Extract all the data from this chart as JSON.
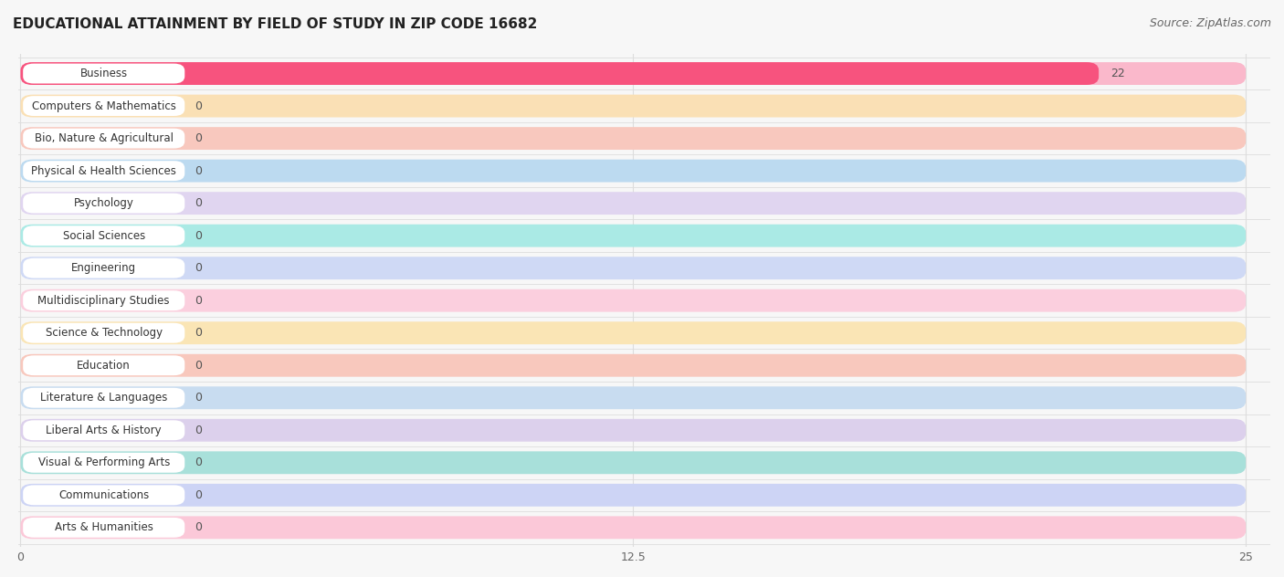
{
  "title": "EDUCATIONAL ATTAINMENT BY FIELD OF STUDY IN ZIP CODE 16682",
  "source": "Source: ZipAtlas.com",
  "categories": [
    "Business",
    "Computers & Mathematics",
    "Bio, Nature & Agricultural",
    "Physical & Health Sciences",
    "Psychology",
    "Social Sciences",
    "Engineering",
    "Multidisciplinary Studies",
    "Science & Technology",
    "Education",
    "Literature & Languages",
    "Liberal Arts & History",
    "Visual & Performing Arts",
    "Communications",
    "Arts & Humanities"
  ],
  "values": [
    22,
    0,
    0,
    0,
    0,
    0,
    0,
    0,
    0,
    0,
    0,
    0,
    0,
    0,
    0
  ],
  "bar_colors": [
    "#F7537E",
    "#F5C07A",
    "#F0967F",
    "#7FB5DC",
    "#C4AFDC",
    "#6ECFC8",
    "#9AAEE0",
    "#F79BB8",
    "#F5C57A",
    "#F09080",
    "#90B8DC",
    "#B89CCC",
    "#60C4BC",
    "#9AACD8",
    "#F79BB0"
  ],
  "bar_bg_colors": [
    "#FAB8CB",
    "#FAE0B5",
    "#F8C8BE",
    "#BCDAF0",
    "#E0D5F0",
    "#AAEAE5",
    "#CFD9F5",
    "#FBCFDE",
    "#FAE5B5",
    "#F8C8BD",
    "#C8DCF0",
    "#DCD0EC",
    "#A8E0DA",
    "#CDD4F5",
    "#FBC8D8"
  ],
  "xlim": [
    0,
    25
  ],
  "xticks": [
    0,
    12.5,
    25
  ],
  "bg_color": "#f7f7f7",
  "row_sep_color": "#dddddd",
  "grid_color": "#dddddd",
  "title_fontsize": 11,
  "source_fontsize": 9,
  "label_fontsize": 8.5,
  "value_fontsize": 9
}
